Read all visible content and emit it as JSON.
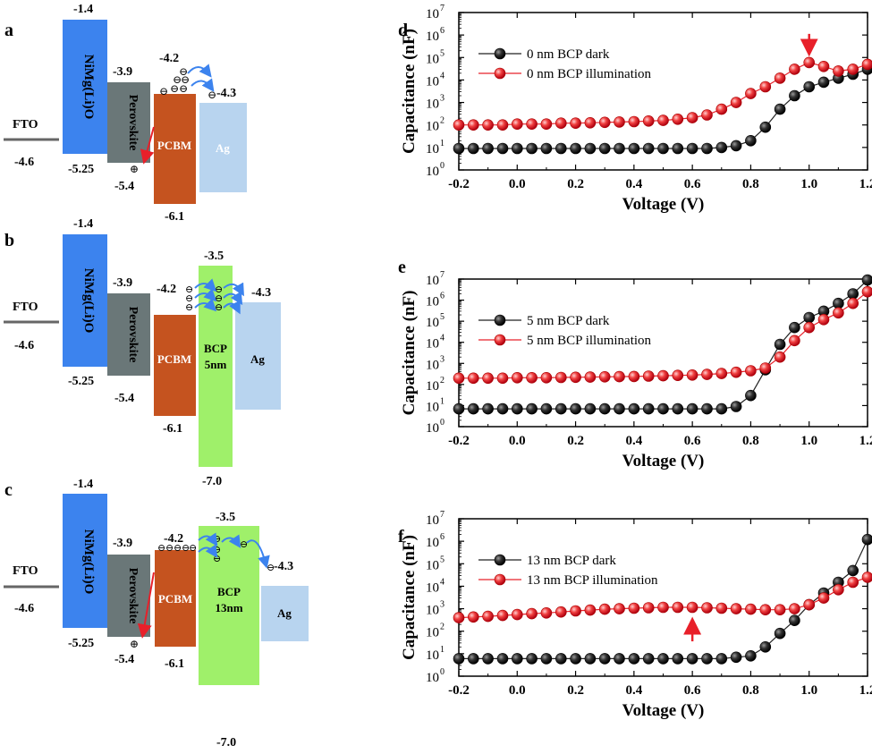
{
  "figure": {
    "panels": [
      {
        "label": "a",
        "fto": {
          "label": "FTO",
          "value": "-4.6"
        },
        "layers": [
          {
            "name": "NiMg(Li)O",
            "top": "-1.4",
            "bottom": "-5.25",
            "color": "#3c83ee"
          },
          {
            "name": "Perovskite",
            "top": "-3.9",
            "bottom": "-5.4",
            "color": "#6a7778"
          },
          {
            "name": "PCBM",
            "top": "-4.2",
            "bottom": "-6.1",
            "color": "#c5531f"
          },
          {
            "name": "Ag",
            "top": "-4.3",
            "bottom": "",
            "color": "#b8d4ef"
          }
        ]
      },
      {
        "label": "b",
        "fto": {
          "label": "FTO",
          "value": "-4.6"
        },
        "layers": [
          {
            "name": "NiMg(Li)O",
            "top": "-1.4",
            "bottom": "-5.25",
            "color": "#3c83ee"
          },
          {
            "name": "Perovskite",
            "top": "-3.9",
            "bottom": "-5.4",
            "color": "#6a7778"
          },
          {
            "name": "PCBM",
            "top": "-4.2",
            "bottom": "-6.1",
            "color": "#c5531f"
          },
          {
            "name": "BCP",
            "sub": "5nm",
            "top": "-3.5",
            "bottom": "-7.0",
            "color": "#9ff06a"
          },
          {
            "name": "Ag",
            "top": "-4.3",
            "bottom": "",
            "color": "#b8d4ef"
          }
        ]
      },
      {
        "label": "c",
        "fto": {
          "label": "FTO",
          "value": "-4.6"
        },
        "layers": [
          {
            "name": "NiMg(Li)O",
            "top": "-1.4",
            "bottom": "-5.25",
            "color": "#3c83ee"
          },
          {
            "name": "Perovskite",
            "top": "-3.9",
            "bottom": "-5.4",
            "color": "#6a7778"
          },
          {
            "name": "PCBM",
            "top": "-4.2",
            "bottom": "-6.1",
            "color": "#c5531f"
          },
          {
            "name": "BCP",
            "sub": "13nm",
            "top": "-3.5",
            "bottom": "-7.0",
            "color": "#9ff06a"
          },
          {
            "name": "Ag",
            "top": "-4.3",
            "bottom": "",
            "color": "#b8d4ef"
          }
        ]
      }
    ],
    "symbols": {
      "electron": "⊖",
      "hole": "⊕"
    }
  },
  "chart_data": [
    {
      "label": "d",
      "type": "scatter",
      "xlabel": "Voltage (V)",
      "ylabel": "Capacitance (nF)",
      "xlim": [
        -0.2,
        1.2
      ],
      "ylim_log10": [
        0,
        7
      ],
      "xticks": [
        "-0.2",
        "0.0",
        "0.2",
        "0.4",
        "0.6",
        "0.8",
        "1.0",
        "1.2"
      ],
      "yticks": [
        "10",
        "10",
        "10",
        "10",
        "10",
        "10",
        "10",
        "10"
      ],
      "yticks_exp": [
        "0",
        "1",
        "2",
        "3",
        "4",
        "5",
        "6",
        "7"
      ],
      "legend_position": "top-left",
      "annotation": {
        "type": "arrow-down",
        "x": 1.0,
        "color": "#e8202a"
      },
      "series": [
        {
          "name": "0 nm BCP dark",
          "color": "#222222",
          "x": [
            -0.2,
            -0.15,
            -0.1,
            -0.05,
            0,
            0.05,
            0.1,
            0.15,
            0.2,
            0.25,
            0.3,
            0.35,
            0.4,
            0.45,
            0.5,
            0.55,
            0.6,
            0.65,
            0.7,
            0.75,
            0.8,
            0.85,
            0.9,
            0.95,
            1.0,
            1.05,
            1.1,
            1.15,
            1.2
          ],
          "y": [
            9,
            9,
            9,
            9,
            9,
            9,
            9,
            9,
            9,
            9,
            9,
            9,
            9,
            9,
            9,
            9,
            9,
            9,
            10,
            12,
            20,
            80,
            500,
            2000,
            5000,
            8000,
            12000,
            18000,
            30000
          ]
        },
        {
          "name": "0 nm BCP illumination",
          "color": "#e8202a",
          "x": [
            -0.2,
            -0.15,
            -0.1,
            -0.05,
            0,
            0.05,
            0.1,
            0.15,
            0.2,
            0.25,
            0.3,
            0.35,
            0.4,
            0.45,
            0.5,
            0.55,
            0.6,
            0.65,
            0.7,
            0.75,
            0.8,
            0.85,
            0.9,
            0.95,
            1.0,
            1.05,
            1.1,
            1.15,
            1.2
          ],
          "y": [
            100,
            100,
            100,
            100,
            110,
            110,
            110,
            120,
            120,
            125,
            130,
            135,
            140,
            150,
            160,
            180,
            210,
            280,
            500,
            1000,
            2500,
            5000,
            12000,
            30000,
            60000,
            40000,
            25000,
            30000,
            50000
          ]
        }
      ]
    },
    {
      "label": "e",
      "type": "scatter",
      "xlabel": "Voltage (V)",
      "ylabel": "Capacitance (nF)",
      "xlim": [
        -0.2,
        1.2
      ],
      "ylim_log10": [
        0,
        7
      ],
      "xticks": [
        "-0.2",
        "0.0",
        "0.2",
        "0.4",
        "0.6",
        "0.8",
        "1.0",
        "1.2"
      ],
      "yticks": [
        "10",
        "10",
        "10",
        "10",
        "10",
        "10",
        "10",
        "10"
      ],
      "yticks_exp": [
        "0",
        "1",
        "2",
        "3",
        "4",
        "5",
        "6",
        "7"
      ],
      "legend_position": "top-left",
      "series": [
        {
          "name": "5 nm BCP dark",
          "color": "#222222",
          "x": [
            -0.2,
            -0.15,
            -0.1,
            -0.05,
            0,
            0.05,
            0.1,
            0.15,
            0.2,
            0.25,
            0.3,
            0.35,
            0.4,
            0.45,
            0.5,
            0.55,
            0.6,
            0.65,
            0.7,
            0.75,
            0.8,
            0.85,
            0.9,
            0.95,
            1.0,
            1.05,
            1.1,
            1.15,
            1.2
          ],
          "y": [
            7,
            7,
            7,
            7,
            7,
            7,
            7,
            7,
            7,
            7,
            7,
            7,
            7,
            7,
            7,
            7,
            7,
            7,
            7,
            9,
            30,
            500,
            8000,
            50000,
            150000,
            300000,
            700000,
            2000000,
            9000000
          ]
        },
        {
          "name": "5 nm BCP illumination",
          "color": "#e8202a",
          "x": [
            -0.2,
            -0.15,
            -0.1,
            -0.05,
            0,
            0.05,
            0.1,
            0.15,
            0.2,
            0.25,
            0.3,
            0.35,
            0.4,
            0.45,
            0.5,
            0.55,
            0.6,
            0.65,
            0.7,
            0.75,
            0.8,
            0.85,
            0.9,
            0.95,
            1.0,
            1.05,
            1.1,
            1.15,
            1.2
          ],
          "y": [
            200,
            200,
            200,
            200,
            210,
            210,
            210,
            215,
            220,
            225,
            230,
            235,
            240,
            250,
            260,
            270,
            280,
            300,
            330,
            380,
            450,
            600,
            2000,
            12000,
            50000,
            120000,
            250000,
            700000,
            2500000
          ]
        }
      ]
    },
    {
      "label": "f",
      "type": "scatter",
      "xlabel": "Voltage (V)",
      "ylabel": "Capacitance (nF)",
      "xlim": [
        -0.2,
        1.2
      ],
      "ylim_log10": [
        0,
        7
      ],
      "xticks": [
        "-0.2",
        "0.0",
        "0.2",
        "0.4",
        "0.6",
        "0.8",
        "1.0",
        "1.2"
      ],
      "yticks": [
        "10",
        "10",
        "10",
        "10",
        "10",
        "10",
        "10",
        "10"
      ],
      "yticks_exp": [
        "0",
        "1",
        "2",
        "3",
        "4",
        "5",
        "6",
        "7"
      ],
      "legend_position": "top-left",
      "annotation": {
        "type": "arrow-up",
        "x": 0.6,
        "color": "#e8202a"
      },
      "series": [
        {
          "name": "13 nm BCP dark",
          "color": "#222222",
          "x": [
            -0.2,
            -0.15,
            -0.1,
            -0.05,
            0,
            0.05,
            0.1,
            0.15,
            0.2,
            0.25,
            0.3,
            0.35,
            0.4,
            0.45,
            0.5,
            0.55,
            0.6,
            0.65,
            0.7,
            0.75,
            0.8,
            0.85,
            0.9,
            0.95,
            1.0,
            1.05,
            1.1,
            1.15,
            1.2
          ],
          "y": [
            6,
            6,
            6,
            6,
            6,
            6,
            6,
            6,
            6,
            6,
            6,
            6,
            6,
            6,
            6,
            6,
            6,
            6,
            6,
            7,
            8,
            20,
            80,
            300,
            1500,
            5000,
            15000,
            50000,
            1200000
          ]
        },
        {
          "name": "13 nm BCP illumination",
          "color": "#e8202a",
          "x": [
            -0.2,
            -0.15,
            -0.1,
            -0.05,
            0,
            0.05,
            0.1,
            0.15,
            0.2,
            0.25,
            0.3,
            0.35,
            0.4,
            0.45,
            0.5,
            0.55,
            0.6,
            0.65,
            0.7,
            0.75,
            0.8,
            0.85,
            0.9,
            0.95,
            1.0,
            1.05,
            1.1,
            1.15,
            1.2
          ],
          "y": [
            400,
            430,
            460,
            500,
            550,
            600,
            650,
            720,
            800,
            870,
            950,
            1000,
            1050,
            1100,
            1150,
            1150,
            1150,
            1100,
            1050,
            1000,
            950,
            900,
            900,
            1000,
            1500,
            3000,
            7000,
            15000,
            25000
          ]
        }
      ]
    }
  ]
}
